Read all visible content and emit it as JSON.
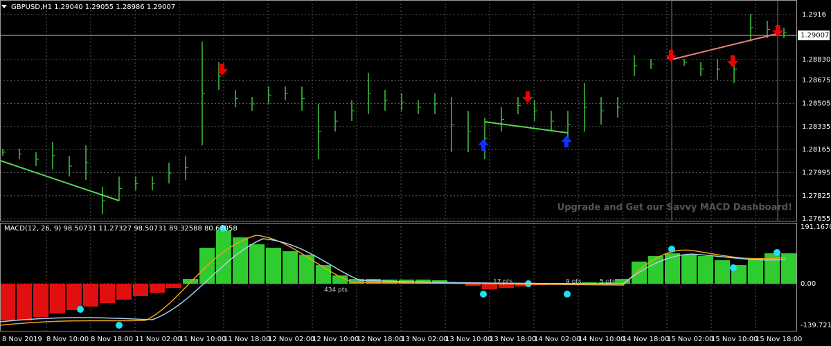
{
  "header": {
    "title": "GBPUSD,H1  1.29040 1.29055 1.28986 1.29007"
  },
  "banner": "Upgrade and Get our Savvy MACD Dashboard!",
  "price_panel": {
    "ylim": [
      1.27635,
      1.29268
    ],
    "yticks": [
      1.2916,
      {
        "value": 1.2883,
        "label": "1.28830"
      },
      1.28675,
      1.28505,
      1.28335,
      1.28165,
      1.27995,
      1.27825,
      1.27655
    ],
    "current_price": 1.29007,
    "bar_color": "#3fc63f",
    "highs": [
      1.28171,
      1.28171,
      1.28145,
      1.28222,
      1.2812,
      1.28196,
      1.2789,
      1.27966,
      1.27966,
      1.27966,
      1.28069,
      1.2812,
      1.28962,
      1.28809,
      1.28605,
      1.28553,
      1.2863,
      1.2863,
      1.2863,
      1.28502,
      1.28451,
      1.28528,
      1.28732,
      1.28605,
      1.28579,
      1.28528,
      1.28579,
      1.28553,
      1.28451,
      1.284,
      1.28477,
      1.28553,
      1.28528,
      1.28451,
      1.28451,
      1.28656,
      1.28553,
      1.28553,
      1.2886,
      1.28834,
      1.2886,
      1.28834,
      1.28809,
      1.28834,
      1.2886,
      1.29166,
      1.29115,
      1.29064
    ],
    "lows": [
      1.2812,
      1.28094,
      1.28043,
      1.28018,
      1.27966,
      1.27941,
      1.27686,
      1.27788,
      1.27864,
      1.27864,
      1.27915,
      1.27941,
      1.28196,
      1.28605,
      1.28477,
      1.28451,
      1.28502,
      1.28528,
      1.28451,
      1.28094,
      1.28298,
      1.28375,
      1.28426,
      1.28451,
      1.28451,
      1.28426,
      1.28426,
      1.28145,
      1.28145,
      1.28094,
      1.28298,
      1.28426,
      1.28375,
      1.28298,
      1.28247,
      1.28298,
      1.28349,
      1.284,
      1.28707,
      1.28758,
      1.28834,
      1.28783,
      1.28707,
      1.28681,
      1.28656,
      1.28962,
      1.28988,
      1.28988
    ]
  },
  "macd_panel": {
    "label": "MACD(12, 26, 9) 98.50731 11.27327 98.50731 89.32588 80.67058",
    "ylim": [
      -158.36,
      205.15
    ],
    "yticks": [
      191.16705,
      {
        "value": 0,
        "label": "0.00"
      },
      -139.7218
    ],
    "pos_color": "#2ecc2e",
    "neg_color": "#e01010",
    "histogram": [
      -123.5,
      -123.5,
      -111.8,
      -100.2,
      -88.5,
      -76.9,
      -65.2,
      -53.6,
      -41.9,
      -30.3,
      -14.0,
      16.3,
      121.2,
      179.4,
      156.1,
      132.8,
      121.2,
      109.5,
      97.9,
      62.9,
      27.9,
      16.3,
      16.3,
      14.0,
      14.0,
      14.0,
      11.7,
      4.7,
      -7.0,
      -18.6,
      -14.0,
      -9.3,
      -4.7,
      -2.3,
      -4.7,
      4.7,
      4.7,
      16.3,
      74.6,
      93.2,
      102.5,
      97.9,
      93.2,
      79.2,
      62.9,
      86.6,
      102.5,
      102.5
    ],
    "annotations": [
      "434 pts",
      "17 pts",
      "9 pts",
      "5 pts"
    ]
  },
  "time_axis": [
    "8 Nov 2019",
    "8 Nov 10:00",
    "8 Nov 18:00",
    "11 Nov 02:00",
    "11 Nov 10:00",
    "11 Nov 18:00",
    "12 Nov 02:00",
    "12 Nov 10:00",
    "12 Nov 18:00",
    "13 Nov 02:00",
    "13 Nov 10:00",
    "13 Nov 18:00",
    "14 Nov 02:00",
    "14 Nov 10:00",
    "14 Nov 18:00",
    "15 Nov 02:00",
    "15 Nov 10:00",
    "15 Nov 18:00"
  ]
}
